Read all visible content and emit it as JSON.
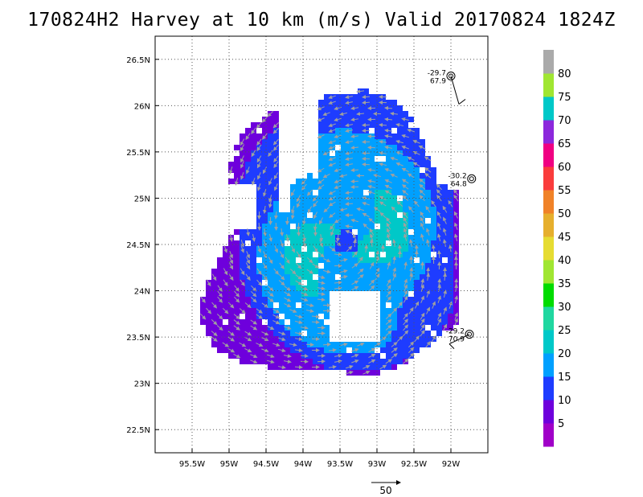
{
  "title": "170824H2 Harvey at 10 km (m/s) Valid 20170824 1824Z",
  "map": {
    "lon_range": [
      -96.0,
      -91.5
    ],
    "lat_range": [
      22.25,
      26.75
    ],
    "lon_ticks": [
      {
        "value": -95.5,
        "label": "95.5W"
      },
      {
        "value": -95.0,
        "label": "95W"
      },
      {
        "value": -94.5,
        "label": "94.5W"
      },
      {
        "value": -94.0,
        "label": "94W"
      },
      {
        "value": -93.5,
        "label": "93.5W"
      },
      {
        "value": -93.0,
        "label": "93W"
      },
      {
        "value": -92.5,
        "label": "92.5W"
      },
      {
        "value": -92.0,
        "label": "92W"
      }
    ],
    "lat_ticks": [
      {
        "value": 26.5,
        "label": "26.5N"
      },
      {
        "value": 26.0,
        "label": "26N"
      },
      {
        "value": 25.5,
        "label": "25.5N"
      },
      {
        "value": 25.0,
        "label": "25N"
      },
      {
        "value": 24.5,
        "label": "24.5N"
      },
      {
        "value": 24.0,
        "label": "24N"
      },
      {
        "value": 23.5,
        "label": "23.5N"
      },
      {
        "value": 23.0,
        "label": "23N"
      },
      {
        "value": 22.5,
        "label": "22.5N"
      }
    ],
    "grid": "dotted",
    "storm_center": {
      "lon": -93.45,
      "lat": 24.55
    }
  },
  "observations": [
    {
      "lon": -92.0,
      "lat": 26.32,
      "pressure": "-29.7",
      "speed": "67.9"
    },
    {
      "lon": -91.72,
      "lat": 25.21,
      "pressure": "-30.2",
      "speed": "64.8"
    },
    {
      "lon": -91.75,
      "lat": 23.53,
      "pressure": "-29.2",
      "speed": "70.9"
    }
  ],
  "colorbar": {
    "labels": [
      "5",
      "10",
      "15",
      "20",
      "25",
      "30",
      "35",
      "40",
      "45",
      "50",
      "55",
      "60",
      "65",
      "70",
      "75",
      "80"
    ],
    "colors": [
      "#a000c8",
      "#6e00dc",
      "#1e3cff",
      "#00a0ff",
      "#00c8c8",
      "#20d7a0",
      "#00dc00",
      "#a0e632",
      "#e6dc32",
      "#e6af2d",
      "#f08228",
      "#fa3c3c",
      "#f00082",
      "#8c28dc",
      "#00c8c8",
      "#a0e632",
      "#aaaaaa"
    ]
  },
  "vector_legend": {
    "label": "50"
  }
}
